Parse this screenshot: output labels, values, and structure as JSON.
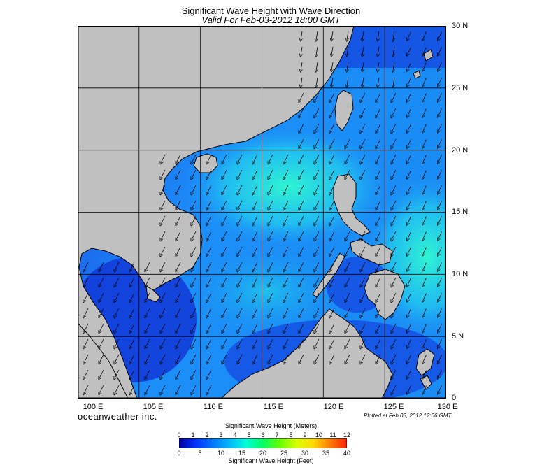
{
  "title": "Significant Wave Height with Wave Direction",
  "subtitle": "Valid For Feb-03-2012 18:00 GMT",
  "brand": "oceanweather inc.",
  "plotted": "Plotted at Feb 03, 2012 12:06 GMT",
  "lat_labels": [
    "30 N",
    "25 N",
    "20 N",
    "15 N",
    "10 N",
    "5 N",
    "0"
  ],
  "lon_labels": [
    "100 E",
    "105 E",
    "110 E",
    "115 E",
    "120 E",
    "125 E",
    "130 E"
  ],
  "colorbar": {
    "meters_title": "Significant Wave Height (Meters)",
    "feet_title": "Significant Wave Height (Feet)",
    "meters_ticks": [
      "0",
      "1",
      "2",
      "3",
      "4",
      "5",
      "6",
      "7",
      "8",
      "9",
      "10",
      "11",
      "12"
    ],
    "feet_ticks": [
      "0",
      "5",
      "10",
      "15",
      "20",
      "25",
      "30",
      "35",
      "40"
    ],
    "colors": [
      "#0000a0",
      "#0033ff",
      "#0077ff",
      "#00b8ff",
      "#00ffd8",
      "#00ff66",
      "#66ff00",
      "#d8ff00",
      "#ffd800",
      "#ff7a00",
      "#ff2000"
    ]
  },
  "colors": {
    "land": "#c0c0c0",
    "ocean_low": "#1a4fe0",
    "ocean_mid": "#1ea6ff",
    "ocean_high": "#2ef0d0",
    "grid": "#000000"
  }
}
